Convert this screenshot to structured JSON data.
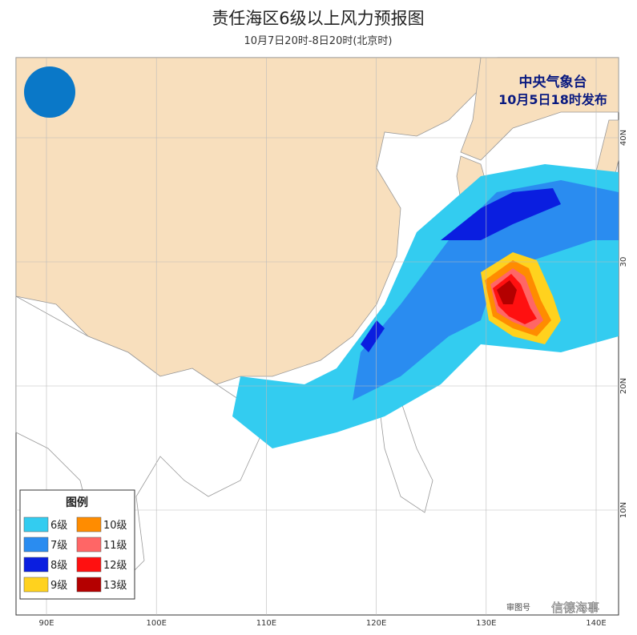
{
  "header": {
    "title": "责任海区6级以上风力预报图",
    "subtitle": "10月7日20时-8日20时(北京时)"
  },
  "issuer": {
    "agency": "中央气象台",
    "issued": "10月5日18时发布"
  },
  "legend": {
    "title": "图例",
    "items": [
      {
        "label": "6级",
        "color": "#33ccf0"
      },
      {
        "label": "10级",
        "color": "#ff8c00"
      },
      {
        "label": "7级",
        "color": "#2a8cf0"
      },
      {
        "label": "11级",
        "color": "#ff6666"
      },
      {
        "label": "8级",
        "color": "#0a1ee0"
      },
      {
        "label": "12级",
        "color": "#ff1010"
      },
      {
        "label": "9级",
        "color": "#ffd21e"
      },
      {
        "label": "13级",
        "color": "#b40000"
      }
    ]
  },
  "axes": {
    "longitude": [
      "90E",
      "100E",
      "110E",
      "120E",
      "130E",
      "140E"
    ],
    "latitude": [
      "40N",
      "30",
      "20N",
      "10N"
    ]
  },
  "footer": {
    "review": "审图号",
    "watermark": "信德海事"
  }
}
